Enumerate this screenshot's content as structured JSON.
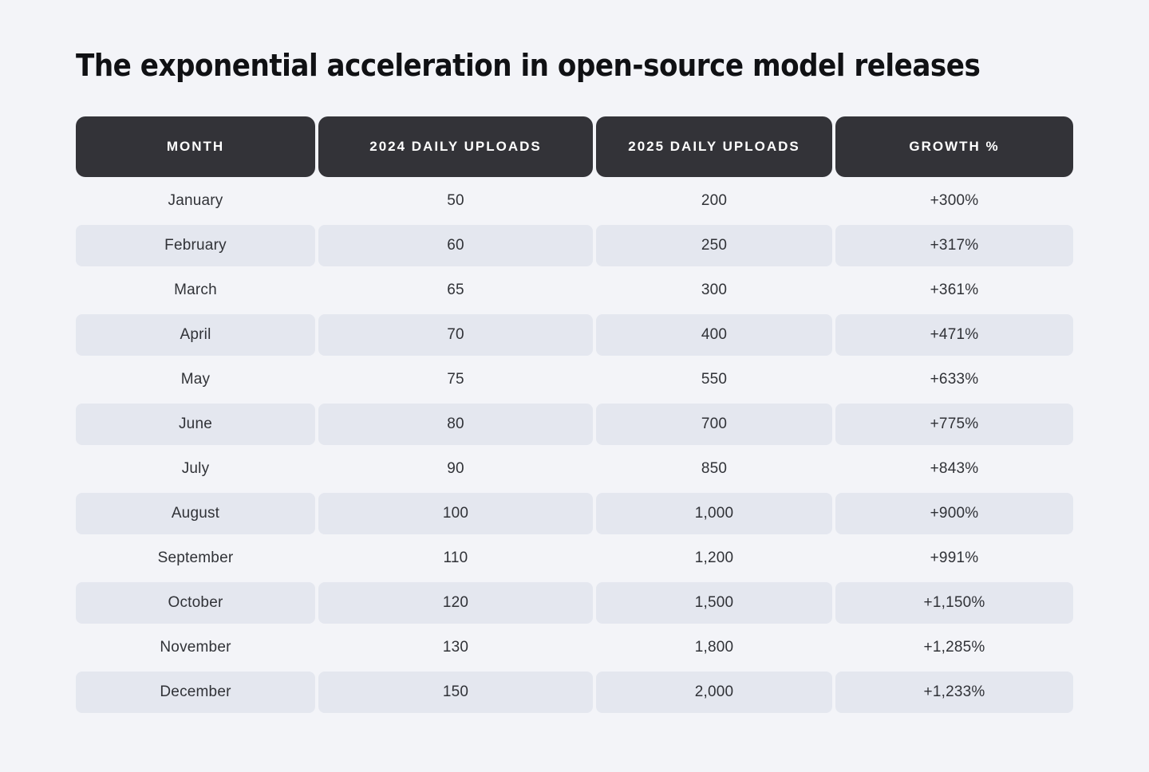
{
  "page": {
    "title": "The exponential acceleration in open-source model releases",
    "background_color": "#f3f4f8"
  },
  "table": {
    "columns": [
      "MONTH",
      "2024 DAILY UPLOADS",
      "2025 DAILY UPLOADS",
      "GROWTH %"
    ],
    "rows": [
      {
        "month": "January",
        "uploads_2024": "50",
        "uploads_2025": "200",
        "growth": "+300%"
      },
      {
        "month": "February",
        "uploads_2024": "60",
        "uploads_2025": "250",
        "growth": "+317%"
      },
      {
        "month": "March",
        "uploads_2024": "65",
        "uploads_2025": "300",
        "growth": "+361%"
      },
      {
        "month": "April",
        "uploads_2024": "70",
        "uploads_2025": "400",
        "growth": "+471%"
      },
      {
        "month": "May",
        "uploads_2024": "75",
        "uploads_2025": "550",
        "growth": "+633%"
      },
      {
        "month": "June",
        "uploads_2024": "80",
        "uploads_2025": "700",
        "growth": "+775%"
      },
      {
        "month": "July",
        "uploads_2024": "90",
        "uploads_2025": "850",
        "growth": "+843%"
      },
      {
        "month": "August",
        "uploads_2024": "100",
        "uploads_2025": "1,000",
        "growth": "+900%"
      },
      {
        "month": "September",
        "uploads_2024": "110",
        "uploads_2025": "1,200",
        "growth": "+991%"
      },
      {
        "month": "October",
        "uploads_2024": "120",
        "uploads_2025": "1,500",
        "growth": "+1,150%"
      },
      {
        "month": "November",
        "uploads_2024": "130",
        "uploads_2025": "1,800",
        "growth": "+1,285%"
      },
      {
        "month": "December",
        "uploads_2024": "150",
        "uploads_2025": "2,000",
        "growth": "+1,233%"
      }
    ],
    "colors": {
      "header_bg": "#333338",
      "header_text": "#ffffff",
      "alt_row_bg": "#e4e7ef",
      "cell_text": "#303237"
    }
  },
  "chart_data": {
    "type": "table",
    "title": "The exponential acceleration in open-source model releases",
    "columns": [
      "Month",
      "2024 Daily Uploads",
      "2025 Daily Uploads",
      "Growth %"
    ],
    "categories": [
      "January",
      "February",
      "March",
      "April",
      "May",
      "June",
      "July",
      "August",
      "September",
      "October",
      "November",
      "December"
    ],
    "series": [
      {
        "name": "2024 Daily Uploads",
        "values": [
          50,
          60,
          65,
          70,
          75,
          80,
          90,
          100,
          110,
          120,
          130,
          150
        ]
      },
      {
        "name": "2025 Daily Uploads",
        "values": [
          200,
          250,
          300,
          400,
          550,
          700,
          850,
          1000,
          1200,
          1500,
          1800,
          2000
        ]
      },
      {
        "name": "Growth %",
        "values": [
          300,
          317,
          361,
          471,
          633,
          775,
          843,
          900,
          991,
          1150,
          1285,
          1233
        ]
      }
    ]
  }
}
